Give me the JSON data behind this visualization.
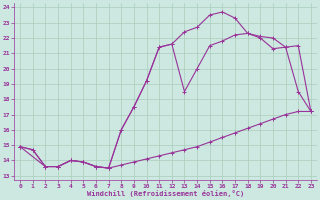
{
  "bg_color": "#cce8e0",
  "line_color": "#993399",
  "grid_color": "#aaccbb",
  "xlabel": "Windchill (Refroidissement éolien,°C)",
  "xlabel_color": "#993399",
  "ylim": [
    13,
    24
  ],
  "xlim": [
    -0.5,
    23.5
  ],
  "yticks": [
    13,
    14,
    15,
    16,
    17,
    18,
    19,
    20,
    21,
    22,
    23,
    24
  ],
  "xticks": [
    0,
    1,
    2,
    3,
    4,
    5,
    6,
    7,
    8,
    9,
    10,
    11,
    12,
    13,
    14,
    15,
    16,
    17,
    18,
    19,
    20,
    21,
    22,
    23
  ],
  "line1_x": [
    0,
    1,
    2,
    3,
    4,
    5,
    6,
    7,
    8,
    9,
    10,
    11,
    12,
    13,
    14,
    15,
    16,
    17,
    18,
    19,
    20,
    21,
    22,
    23
  ],
  "line1_y": [
    14.9,
    14.7,
    13.6,
    13.6,
    14.0,
    13.9,
    13.6,
    13.5,
    13.7,
    13.9,
    14.1,
    14.3,
    14.5,
    14.7,
    14.9,
    15.2,
    15.5,
    15.8,
    16.1,
    16.4,
    16.7,
    17.0,
    17.2,
    17.2
  ],
  "line2_x": [
    0,
    1,
    2,
    3,
    4,
    5,
    6,
    7,
    8,
    9,
    10,
    11,
    12,
    13,
    14,
    15,
    16,
    17,
    18,
    19,
    20,
    21,
    22,
    23
  ],
  "line2_y": [
    14.9,
    14.7,
    13.6,
    13.6,
    14.0,
    13.9,
    13.6,
    13.5,
    16.0,
    17.5,
    19.2,
    21.4,
    21.6,
    18.5,
    20.0,
    21.5,
    21.8,
    22.2,
    22.3,
    22.1,
    22.0,
    21.4,
    18.5,
    17.2
  ],
  "line3_x": [
    0,
    2,
    3,
    4,
    5,
    6,
    7,
    8,
    9,
    10,
    11,
    12,
    13,
    14,
    15,
    16,
    17,
    18,
    19,
    20,
    21,
    22,
    23
  ],
  "line3_y": [
    14.9,
    13.6,
    13.6,
    14.0,
    13.9,
    13.6,
    13.5,
    16.0,
    17.5,
    19.2,
    21.4,
    21.6,
    22.4,
    22.7,
    23.5,
    23.7,
    23.3,
    22.3,
    22.0,
    21.3,
    21.4,
    21.5,
    17.2
  ]
}
